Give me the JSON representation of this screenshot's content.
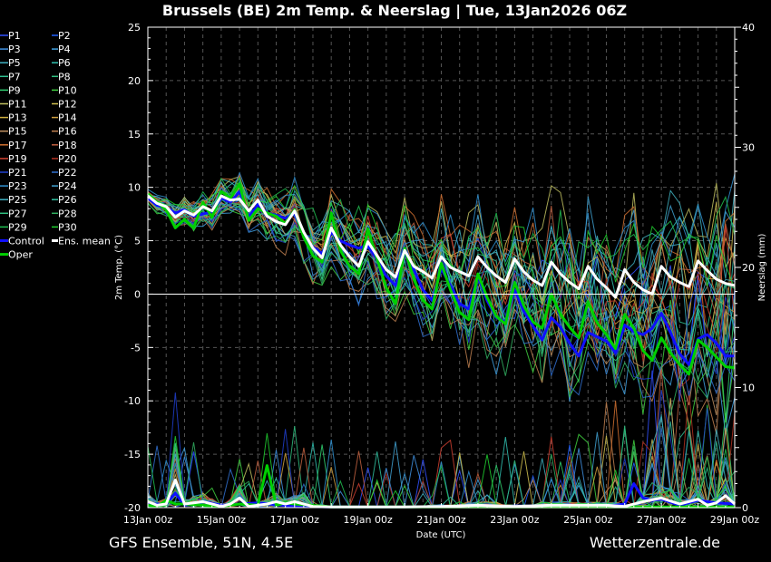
{
  "chart_data": {
    "type": "line",
    "title": "Brussels  (BE)  2m Temp. & Neerslag | Tue, 13Jan2026 06Z",
    "xlabel": "Date (UTC)",
    "ylabel": "2m Temp. (°C)",
    "y2label": "Neerslag (mm)",
    "ylim": [
      -20,
      25
    ],
    "y2lim": [
      0,
      40
    ],
    "y_ticks": [
      25,
      20,
      15,
      10,
      5,
      0,
      -5,
      -10,
      -15,
      -20
    ],
    "y2_ticks": [
      40,
      30,
      20,
      10,
      0
    ],
    "x_ticks": [
      "13Jan 00z",
      "15Jan 00z",
      "17Jan 00z",
      "19Jan 00z",
      "21Jan 00z",
      "23Jan 00z",
      "25Jan 00z",
      "27Jan 00z",
      "29Jan 00z"
    ],
    "x_range_days": [
      0,
      16
    ],
    "grid": true,
    "legend_placement": "left",
    "legend": [
      {
        "name": "P1",
        "color": "#3050ff"
      },
      {
        "name": "P2",
        "color": "#2060ff"
      },
      {
        "name": "P3",
        "color": "#4090e0"
      },
      {
        "name": "P4",
        "color": "#40a0e0"
      },
      {
        "name": "P5",
        "color": "#40b0c0"
      },
      {
        "name": "P6",
        "color": "#30c0b0"
      },
      {
        "name": "P7",
        "color": "#30c090"
      },
      {
        "name": "P8",
        "color": "#30c080"
      },
      {
        "name": "P9",
        "color": "#30d070"
      },
      {
        "name": "P10",
        "color": "#40d040"
      },
      {
        "name": "P11",
        "color": "#c0c060"
      },
      {
        "name": "P12",
        "color": "#d0c050"
      },
      {
        "name": "P13",
        "color": "#d0b040"
      },
      {
        "name": "P14",
        "color": "#d0a040"
      },
      {
        "name": "P15",
        "color": "#c09060"
      },
      {
        "name": "P16",
        "color": "#c08050"
      },
      {
        "name": "P17",
        "color": "#d07030"
      },
      {
        "name": "P18",
        "color": "#c06040"
      },
      {
        "name": "P19",
        "color": "#d04030"
      },
      {
        "name": "P20",
        "color": "#b03020"
      },
      {
        "name": "P21",
        "color": "#2040d0"
      },
      {
        "name": "P22",
        "color": "#3070d0"
      },
      {
        "name": "P23",
        "color": "#3090d0"
      },
      {
        "name": "P24",
        "color": "#40a0d0"
      },
      {
        "name": "P25",
        "color": "#40b0c0"
      },
      {
        "name": "P26",
        "color": "#30c0a0"
      },
      {
        "name": "P27",
        "color": "#30c080"
      },
      {
        "name": "P28",
        "color": "#30b060"
      },
      {
        "name": "P29",
        "color": "#20c050"
      },
      {
        "name": "P30",
        "color": "#20d030"
      },
      {
        "name": "Control",
        "color": "#1010ff"
      },
      {
        "name": "Ens. mean",
        "color": "#ffffff"
      },
      {
        "name": "Oper",
        "color": "#00d000"
      }
    ],
    "series": [
      {
        "name": "Ens. mean",
        "color": "#ffffff",
        "width": 3,
        "x": [
          0,
          0.25,
          0.5,
          0.75,
          1,
          1.25,
          1.5,
          1.75,
          2,
          2.25,
          2.5,
          2.75,
          3,
          3.25,
          3.5,
          3.75,
          4,
          4.25,
          4.5,
          4.75,
          5,
          5.25,
          5.5,
          5.75,
          6,
          6.25,
          6.5,
          6.75,
          7,
          7.25,
          7.5,
          7.75,
          8,
          8.25,
          8.5,
          8.75,
          9,
          9.25,
          9.5,
          9.75,
          10,
          10.25,
          10.5,
          10.75,
          11,
          11.25,
          11.5,
          11.75,
          12,
          12.25,
          12.5,
          12.75,
          13,
          13.25,
          13.5,
          13.75,
          14,
          14.25,
          14.5,
          14.75,
          15,
          15.25,
          15.5,
          15.75,
          16
        ],
        "y": [
          9.2,
          8.5,
          8.2,
          7.2,
          7.8,
          7.4,
          8.2,
          7.8,
          9.2,
          8.8,
          8.9,
          7.8,
          8.8,
          7.3,
          6.8,
          6.5,
          7.8,
          5.8,
          4.3,
          3.4,
          6.2,
          4.6,
          3.5,
          2.6,
          4.9,
          3.6,
          2.3,
          1.6,
          4.1,
          2.6,
          2.1,
          1.5,
          3.5,
          2.5,
          2.1,
          1.7,
          3.5,
          2.5,
          1.7,
          1.1,
          3.3,
          2.1,
          1.3,
          0.8,
          3.0,
          1.9,
          1.1,
          0.5,
          2.6,
          1.4,
          0.6,
          -0.3,
          2.3,
          1.1,
          0.4,
          0.0,
          2.6,
          1.6,
          1.1,
          0.7,
          3.1,
          2.2,
          1.4,
          1.0,
          0.8
        ]
      },
      {
        "name": "Control",
        "color": "#1010ff",
        "width": 3,
        "x": [
          0,
          0.25,
          0.5,
          0.75,
          1,
          1.25,
          1.5,
          1.75,
          2,
          2.25,
          2.5,
          2.75,
          3,
          3.25,
          3.5,
          3.75,
          4,
          4.25,
          4.5,
          4.75,
          5,
          5.25,
          5.5,
          5.75,
          6,
          6.25,
          6.5,
          6.75,
          7,
          7.25,
          7.5,
          7.75,
          8,
          8.25,
          8.5,
          8.75,
          9,
          9.25,
          9.5,
          9.75,
          10,
          10.25,
          10.5,
          10.75,
          11,
          11.25,
          11.5,
          11.75,
          12,
          12.25,
          12.5,
          12.75,
          13,
          13.25,
          13.5,
          13.75,
          14,
          14.25,
          14.5,
          14.75,
          15,
          15.25,
          15.5,
          15.75,
          16
        ],
        "y": [
          9.0,
          8.3,
          8.1,
          7.6,
          7.9,
          7.3,
          7.5,
          7.7,
          9.0,
          8.6,
          9.6,
          7.2,
          8.4,
          7.6,
          7.4,
          7.1,
          7.6,
          5.6,
          4.4,
          3.8,
          5.8,
          5.0,
          4.6,
          4.3,
          4.6,
          3.2,
          1.7,
          0.8,
          3.8,
          2.3,
          0.4,
          -0.6,
          2.4,
          0.8,
          -0.9,
          -1.4,
          1.7,
          -0.6,
          -2.2,
          -2.6,
          0.4,
          -1.6,
          -3.0,
          -4.3,
          -2.2,
          -3.1,
          -4.6,
          -5.8,
          -3.6,
          -4.0,
          -4.4,
          -5.5,
          -2.9,
          -3.5,
          -3.8,
          -3.2,
          -1.8,
          -3.6,
          -5.6,
          -6.6,
          -4.2,
          -3.8,
          -4.6,
          -5.8,
          -5.8
        ]
      },
      {
        "name": "Oper",
        "color": "#00d000",
        "width": 3,
        "x": [
          0,
          0.25,
          0.5,
          0.75,
          1,
          1.25,
          1.5,
          1.75,
          2,
          2.25,
          2.5,
          2.75,
          3,
          3.25,
          3.5,
          3.75,
          4,
          4.25,
          4.5,
          4.75,
          5,
          5.25,
          5.5,
          5.75,
          6,
          6.25,
          6.5,
          6.75,
          7,
          7.25,
          7.5,
          7.75,
          8,
          8.25,
          8.5,
          8.75,
          9,
          9.25,
          9.5,
          9.75,
          10,
          10.25,
          10.5,
          10.75,
          11,
          11.25,
          11.5,
          11.75,
          12,
          12.25,
          12.5,
          12.75,
          13,
          13.25,
          13.5,
          13.75,
          14,
          14.25,
          14.5,
          14.75,
          15,
          15.25,
          15.5,
          15.75,
          16
        ],
        "y": [
          9.4,
          8.6,
          7.9,
          6.2,
          7.0,
          6.2,
          8.6,
          7.2,
          9.6,
          9.0,
          10.3,
          6.9,
          8.0,
          7.6,
          7.3,
          6.6,
          7.9,
          5.3,
          3.6,
          3.0,
          7.6,
          4.1,
          2.6,
          1.9,
          6.1,
          3.3,
          0.6,
          -0.9,
          4.3,
          1.4,
          -0.6,
          -1.4,
          2.9,
          0.4,
          -1.7,
          -2.4,
          1.9,
          -0.3,
          -2.1,
          -2.8,
          1.1,
          -1.1,
          -2.6,
          -3.2,
          0.0,
          -1.9,
          -3.1,
          -4.1,
          -0.7,
          -2.7,
          -3.8,
          -5.1,
          -1.9,
          -3.2,
          -5.3,
          -6.2,
          -4.1,
          -5.5,
          -6.6,
          -7.5,
          -4.3,
          -5.0,
          -5.9,
          -6.8,
          -6.9
        ]
      }
    ],
    "precip_series": [
      {
        "name": "Ens. mean",
        "color": "#ffffff",
        "width": 3,
        "x": [
          0,
          0.25,
          0.5,
          0.75,
          1,
          1.25,
          1.5,
          1.75,
          2,
          2.25,
          2.5,
          2.75,
          3,
          3.25,
          3.5,
          3.75,
          4,
          4.5,
          5,
          6,
          7,
          8,
          9,
          10,
          11,
          12,
          12.5,
          13,
          13.5,
          14,
          14.5,
          15,
          15.25,
          15.5,
          15.75,
          16
        ],
        "y": [
          0.5,
          0.2,
          0.3,
          2.3,
          0.3,
          0.4,
          0.5,
          0.3,
          0.1,
          0.3,
          0.8,
          0.1,
          0.2,
          0.3,
          0.5,
          0.3,
          0.5,
          0.1,
          0.05,
          0.05,
          0.05,
          0.1,
          0.2,
          0.1,
          0.2,
          0.2,
          0.2,
          0.1,
          0.5,
          0.8,
          0.3,
          0.7,
          0.2,
          0.4,
          1.0,
          0.3
        ]
      },
      {
        "name": "Control",
        "color": "#1010ff",
        "width": 3,
        "x": [
          0,
          0.5,
          0.75,
          1,
          1.5,
          2,
          2.5,
          3,
          4,
          5,
          6,
          7,
          8,
          9,
          10,
          11,
          12,
          12.5,
          13,
          13.25,
          13.5,
          13.75,
          14,
          14.5,
          15,
          15.5,
          16
        ],
        "y": [
          0.3,
          0.3,
          1.2,
          0.2,
          0.5,
          0.2,
          0.3,
          0.4,
          0.1,
          0.05,
          0.05,
          0.05,
          0.1,
          0.1,
          0.1,
          0.1,
          0.1,
          0.1,
          0.3,
          2.0,
          0.8,
          0.6,
          0.7,
          0.2,
          0.6,
          0.4,
          0.3
        ]
      },
      {
        "name": "Oper",
        "color": "#00d000",
        "width": 3,
        "x": [
          0,
          0.25,
          0.5,
          0.75,
          1,
          1.5,
          2,
          2.5,
          3,
          3.25,
          3.5,
          3.75,
          4,
          5,
          6,
          7,
          8,
          9,
          10,
          11,
          12,
          13,
          14,
          15,
          16
        ],
        "y": [
          0.2,
          0.1,
          0.6,
          0.3,
          0.3,
          0.2,
          0.1,
          0.3,
          0.2,
          3.5,
          0.2,
          0.4,
          0.3,
          0.05,
          0.05,
          0.05,
          0.05,
          0.05,
          0.05,
          0.05,
          0.05,
          0.05,
          0.05,
          0.05,
          0.05
        ]
      }
    ],
    "zero_line": 0
  },
  "footer": {
    "left": "GFS Ensemble, 51N, 4.5E",
    "right": "Wetterzentrale.de"
  }
}
